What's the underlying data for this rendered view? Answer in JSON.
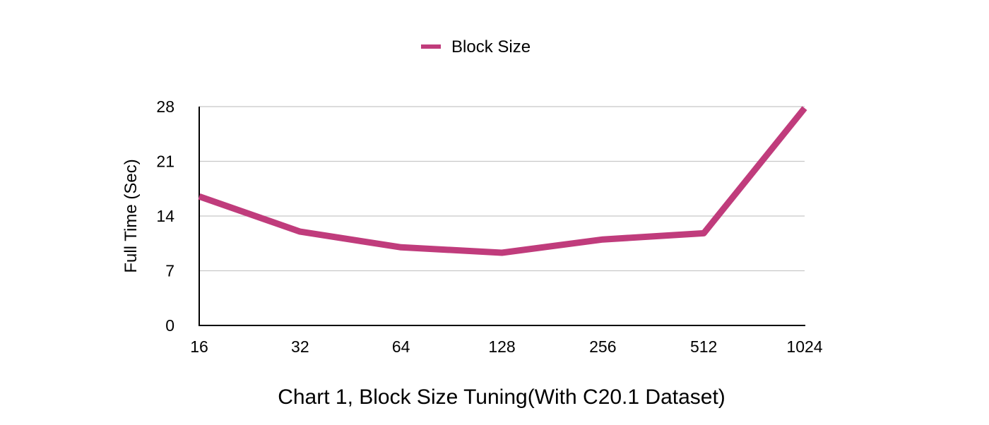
{
  "chart_data": {
    "type": "line",
    "title": "",
    "caption": "Chart 1, Block Size Tuning(With C20.1 Dataset)",
    "xlabel": "",
    "ylabel": "Full Time (Sec)",
    "categories": [
      "16",
      "32",
      "64",
      "128",
      "256",
      "512",
      "1024"
    ],
    "series": [
      {
        "name": "Block Size",
        "color": "#c03c7c",
        "values": [
          16.5,
          12.0,
          10.0,
          9.3,
          11.0,
          11.8,
          27.8
        ]
      }
    ],
    "ylim": [
      0,
      28
    ],
    "yticks": [
      "0",
      "7",
      "14",
      "21",
      "28"
    ],
    "grid": true,
    "legend": "top-center"
  }
}
